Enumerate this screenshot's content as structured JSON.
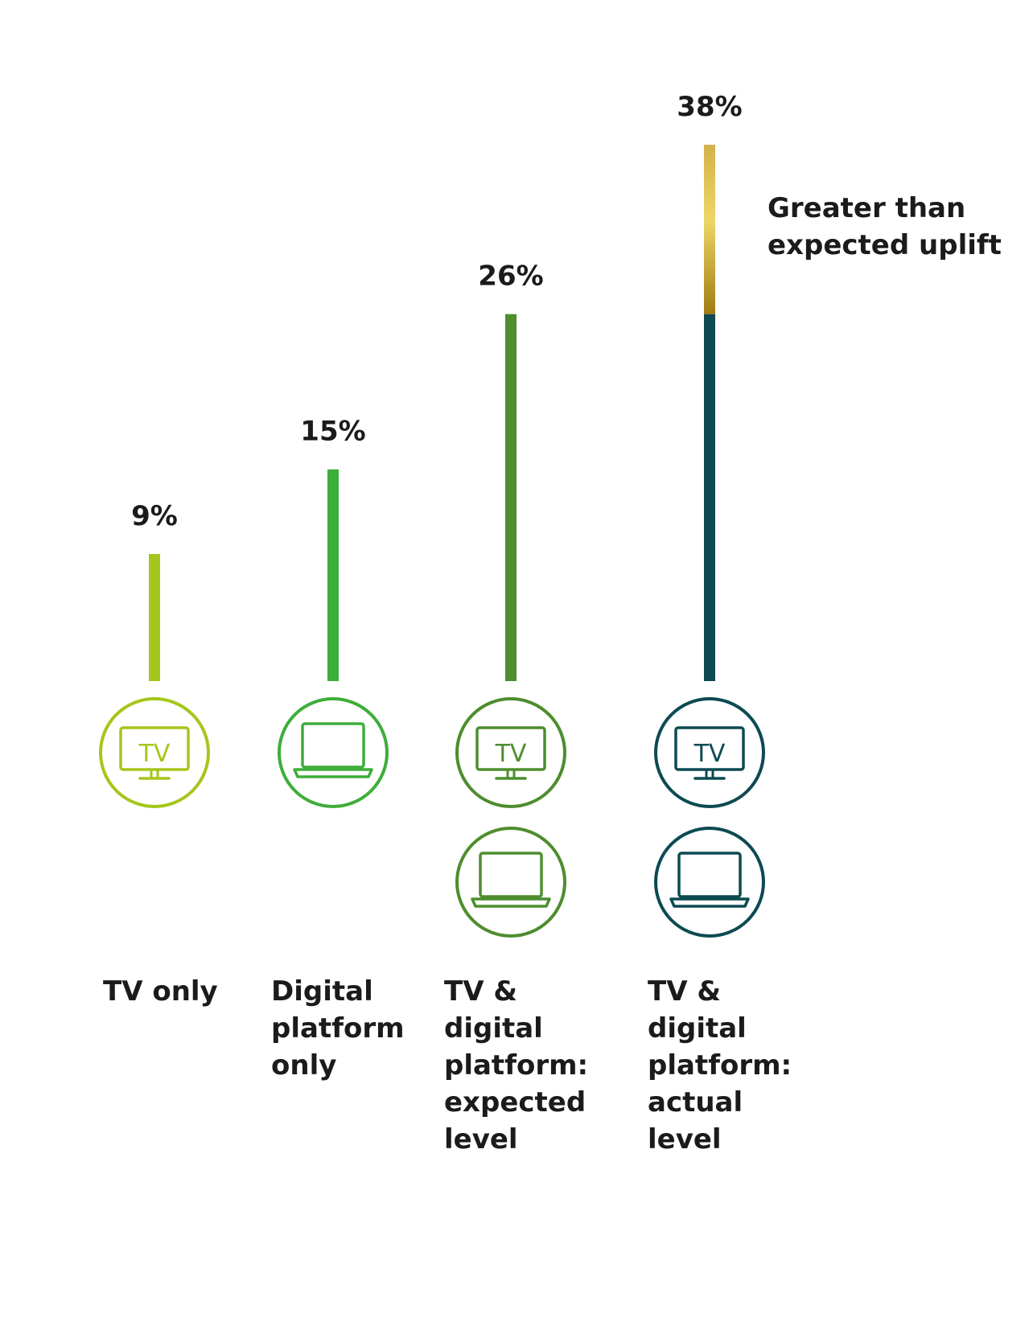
{
  "chart_data": {
    "type": "bar",
    "categories": [
      "TV only",
      "Digital platform only",
      "TV & digital platform: expected level",
      "TV & digital platform: actual level"
    ],
    "values": [
      9,
      15,
      26,
      38
    ],
    "value_labels": [
      "9%",
      "15%",
      "26%",
      "38%"
    ],
    "uplift": {
      "category": "TV & digital platform: actual level",
      "from": 26,
      "to": 38,
      "label": "Greater than expected uplift"
    },
    "icons": [
      [
        "tv-icon"
      ],
      [
        "laptop-icon"
      ],
      [
        "tv-icon",
        "laptop-icon"
      ],
      [
        "tv-icon",
        "laptop-icon"
      ]
    ],
    "colors": [
      "#A5C61B",
      "#3DAE3A",
      "#4E8D2E",
      "#0D4A52"
    ],
    "uplift_colors": [
      "#D4B24A",
      "#EDD665",
      "#9F7B10"
    ],
    "tv_icon_text": "TV",
    "ylim": [
      0,
      38
    ]
  },
  "labels": {
    "cat1": "TV only",
    "cat2": "Digital\nplatform\nonly",
    "cat3": "TV &\ndigital\nplatform:\nexpected\nlevel",
    "cat4": "TV &\ndigital\nplatform:\nactual\nlevel",
    "uplift_line1": "Greater than",
    "uplift_line2": "expected uplift"
  }
}
